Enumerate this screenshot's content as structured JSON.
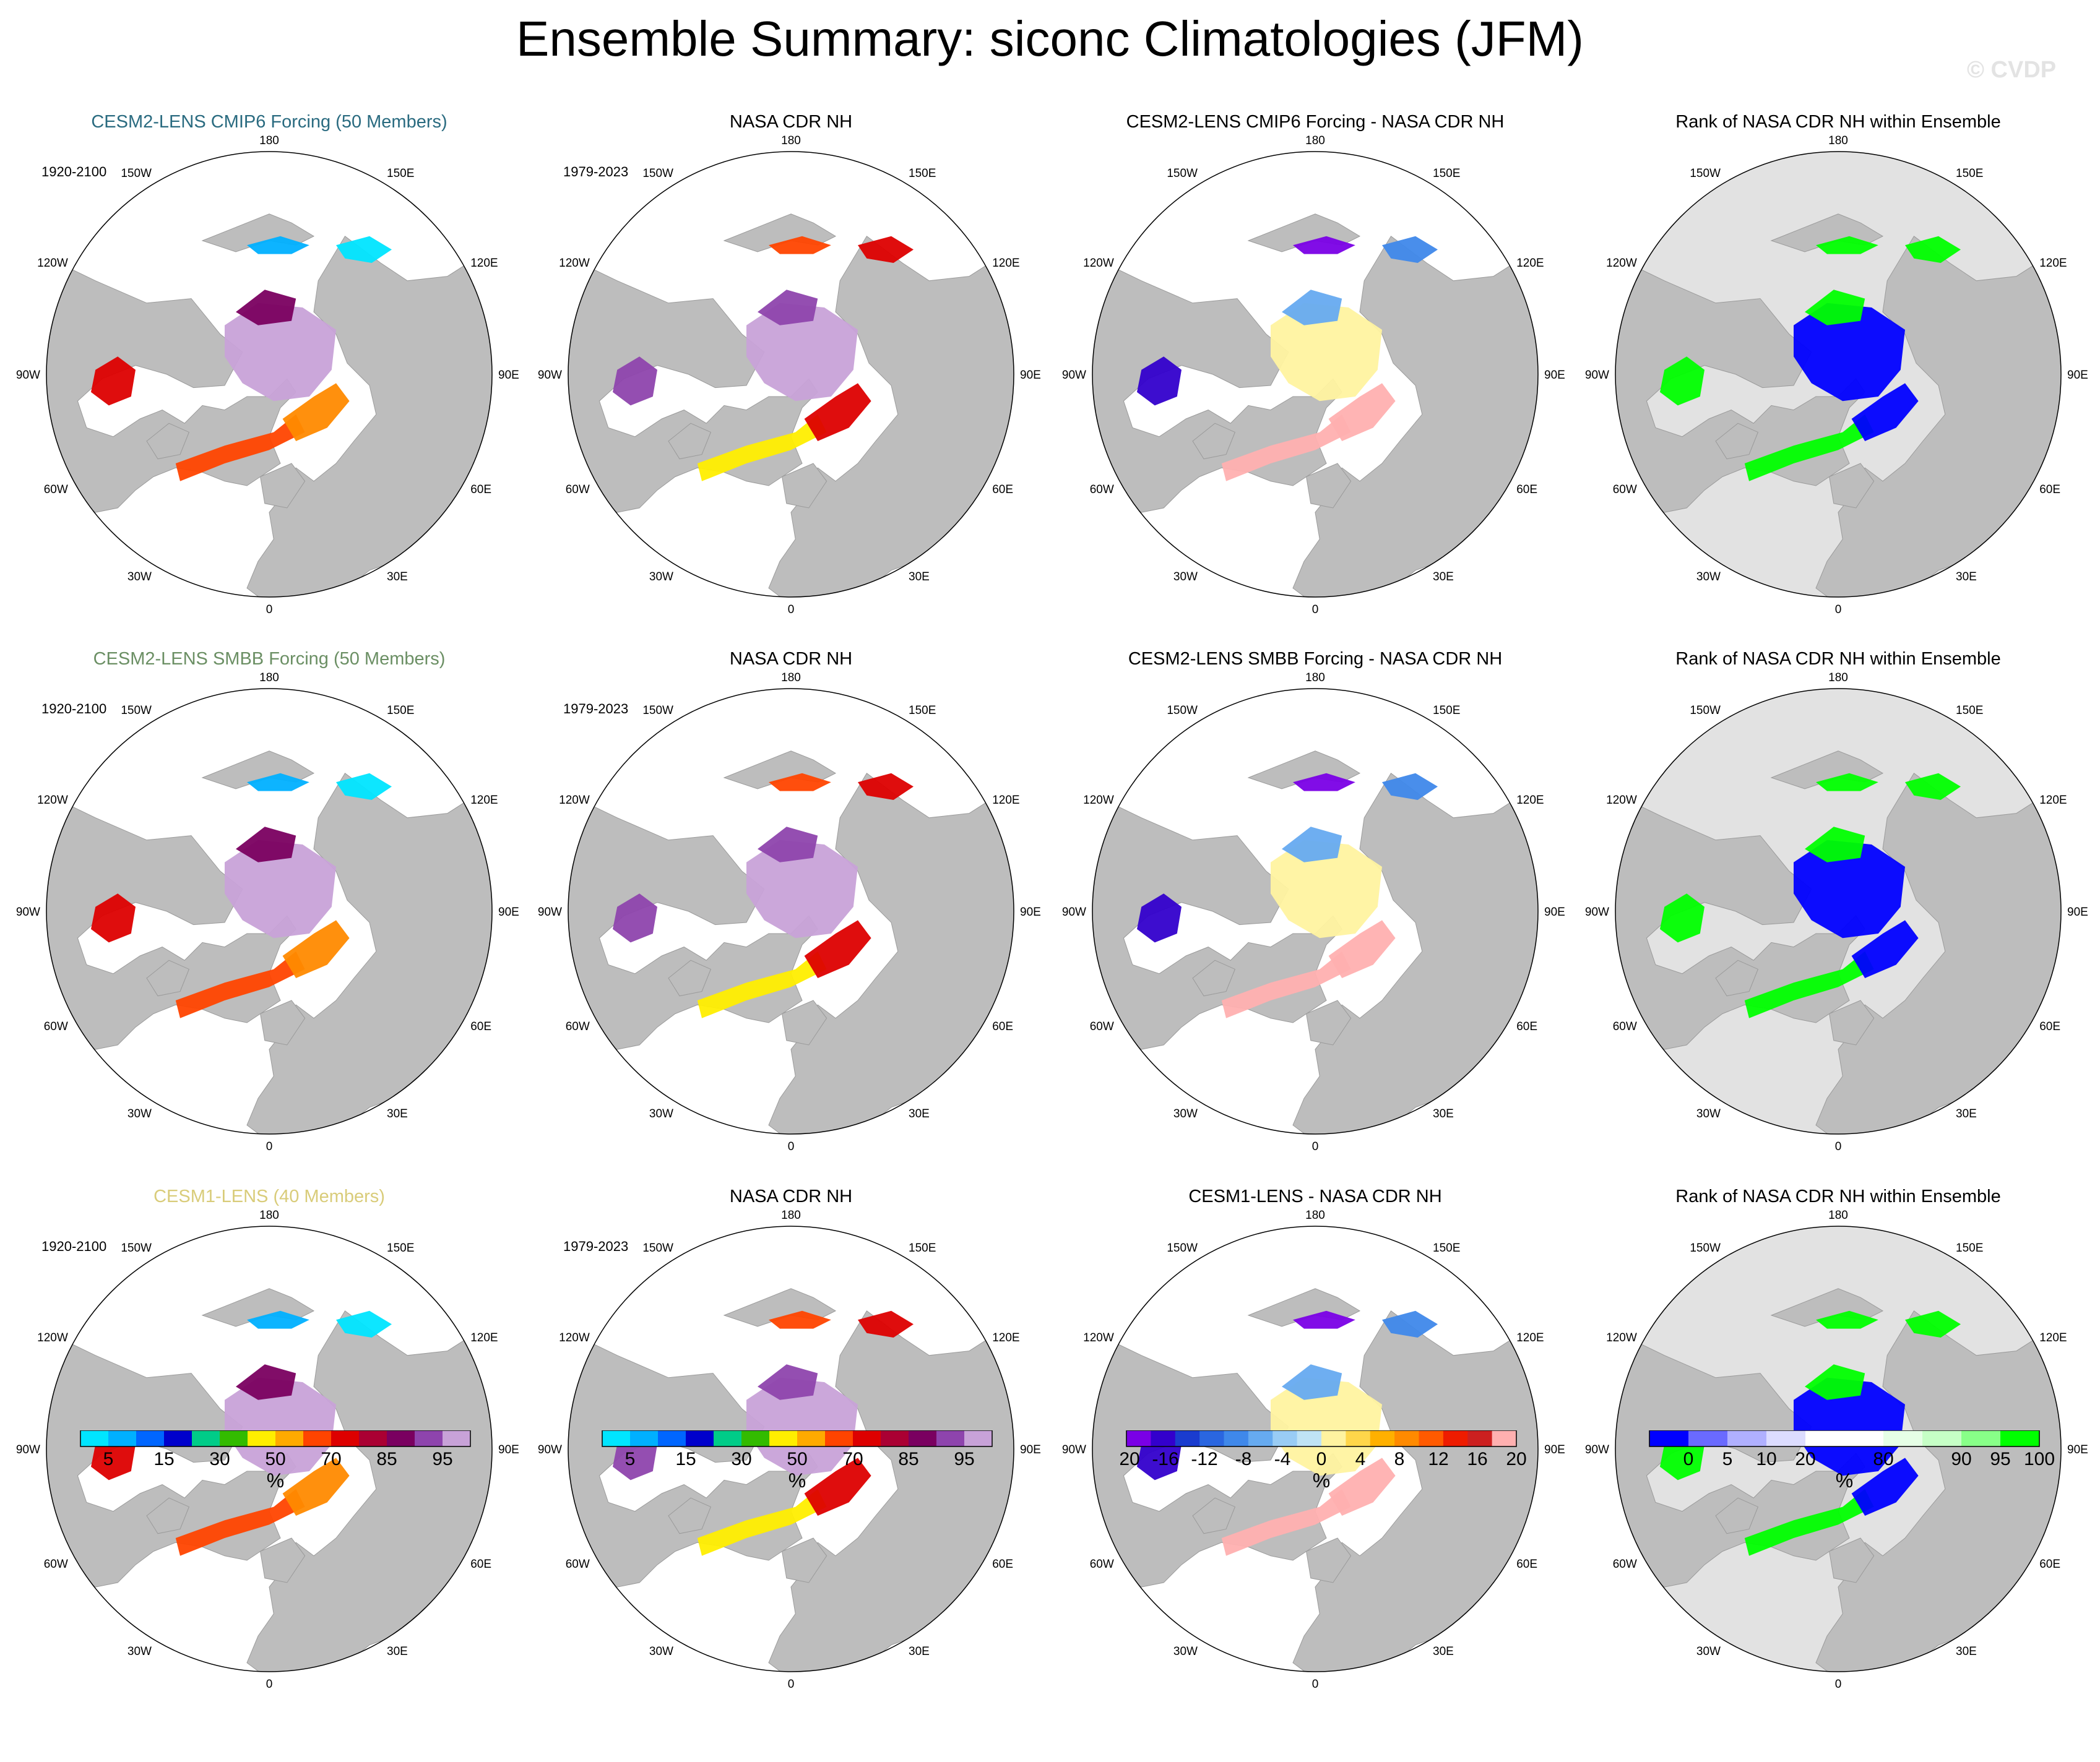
{
  "title": "Ensemble Summary: siconc Climatologies (JFM)",
  "watermark": "© CVDP",
  "map_labels": {
    "top": "180",
    "bottom": "0",
    "w150": "150W",
    "e150": "150E",
    "w120": "120W",
    "e120": "120E",
    "w90": "90W",
    "e90": "90E",
    "w60": "60W",
    "e60": "60E",
    "w30": "30W",
    "e30": "30E"
  },
  "rows": [
    {
      "model_title": "CESM2-LENS CMIP6 Forcing (50 Members)",
      "model_title_color": "#2a6b80",
      "model_period": "1920-2100",
      "obs_title": "NASA CDR NH",
      "obs_period": "1979-2023",
      "diff_title": "CESM2-LENS CMIP6 Forcing - NASA CDR NH",
      "rank_title": "Rank of NASA CDR NH within Ensemble"
    },
    {
      "model_title": "CESM2-LENS SMBB Forcing (50 Members)",
      "model_title_color": "#6b8f64",
      "model_period": "1920-2100",
      "obs_title": "NASA CDR NH",
      "obs_period": "1979-2023",
      "diff_title": "CESM2-LENS SMBB Forcing - NASA CDR NH",
      "rank_title": "Rank of NASA CDR NH within Ensemble"
    },
    {
      "model_title": "CESM1-LENS (40 Members)",
      "model_title_color": "#d9cc7a",
      "model_period": "1920-2100",
      "obs_title": "NASA CDR NH",
      "obs_period": "1979-2023",
      "diff_title": "CESM1-LENS - NASA CDR NH",
      "rank_title": "Rank of NASA CDR NH within Ensemble"
    }
  ],
  "colorbars": {
    "concentration": {
      "unit": "%",
      "colors": [
        "#00e5ff",
        "#00b0ff",
        "#0066ff",
        "#0000cc",
        "#00cc88",
        "#33bb00",
        "#ffee00",
        "#ffaa00",
        "#ff4400",
        "#dd0000",
        "#aa0033",
        "#7a0060",
        "#8e44ad",
        "#c8a2d8"
      ],
      "tick_labels": [
        "5",
        "15",
        "30",
        "50",
        "70",
        "85",
        "95"
      ]
    },
    "difference": {
      "unit": "%",
      "colors": [
        "#7a00e6",
        "#3300cc",
        "#1a3ccf",
        "#2a66e0",
        "#3f88ea",
        "#66aaf0",
        "#99ccf5",
        "#bfe3f5",
        "#fff3a0",
        "#ffd64a",
        "#ffb000",
        "#ff8a00",
        "#ff5a00",
        "#ee1c00",
        "#cc2020",
        "#ffb0b0"
      ],
      "tick_labels": [
        "-20",
        "-16",
        "-12",
        "-8",
        "-4",
        "0",
        "4",
        "8",
        "12",
        "16",
        "20"
      ]
    },
    "rank": {
      "unit": "%",
      "colors": [
        "#0000ff",
        "#6a6aff",
        "#b0b0ff",
        "#dcdcff",
        "#ffffff",
        "#ffffff",
        "#e6ffe6",
        "#c6ffc6",
        "#88ff88",
        "#00ff00"
      ],
      "tick_labels": [
        "0",
        "5",
        "10",
        "20",
        "80",
        "90",
        "95",
        "100"
      ]
    }
  }
}
